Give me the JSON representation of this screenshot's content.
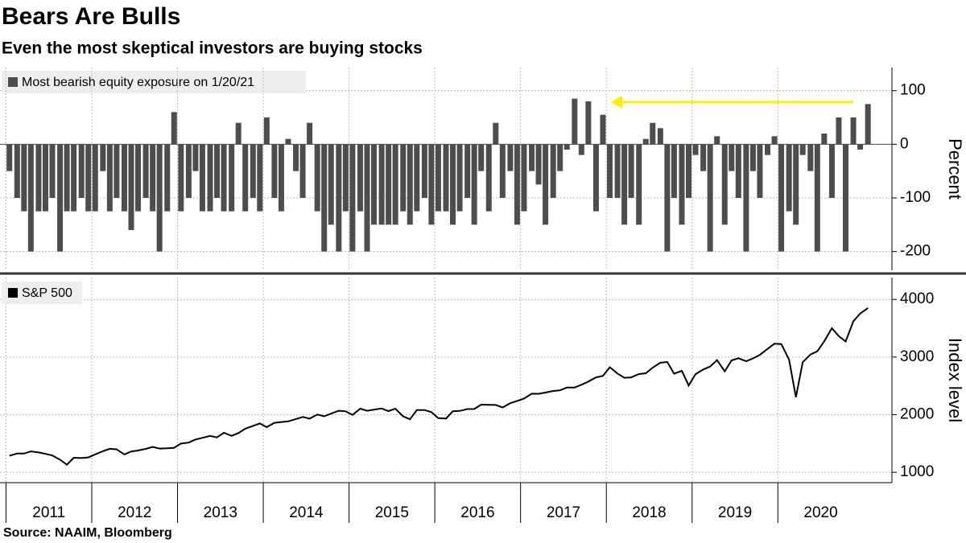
{
  "title": "Bears Are Bulls",
  "subtitle": "Even the most skeptical investors are buying stocks",
  "source": "Source: NAAIM, Bloomberg",
  "chart_data": [
    {
      "type": "bar",
      "ylabel": "Percent",
      "x": [
        2011.04,
        2011.13,
        2011.21,
        2011.29,
        2011.38,
        2011.46,
        2011.54,
        2011.63,
        2011.71,
        2011.79,
        2011.88,
        2011.96,
        2012.04,
        2012.13,
        2012.21,
        2012.29,
        2012.38,
        2012.46,
        2012.54,
        2012.63,
        2012.71,
        2012.79,
        2012.88,
        2012.96,
        2013.04,
        2013.13,
        2013.21,
        2013.29,
        2013.38,
        2013.46,
        2013.54,
        2013.63,
        2013.71,
        2013.79,
        2013.88,
        2013.96,
        2014.04,
        2014.13,
        2014.21,
        2014.29,
        2014.38,
        2014.46,
        2014.54,
        2014.63,
        2014.71,
        2014.79,
        2014.88,
        2014.96,
        2015.04,
        2015.13,
        2015.21,
        2015.29,
        2015.38,
        2015.46,
        2015.54,
        2015.63,
        2015.71,
        2015.79,
        2015.88,
        2015.96,
        2016.04,
        2016.13,
        2016.21,
        2016.29,
        2016.38,
        2016.46,
        2016.54,
        2016.63,
        2016.71,
        2016.79,
        2016.88,
        2016.96,
        2017.04,
        2017.13,
        2017.21,
        2017.29,
        2017.38,
        2017.46,
        2017.54,
        2017.63,
        2017.71,
        2017.79,
        2017.88,
        2017.96,
        2018.04,
        2018.13,
        2018.21,
        2018.29,
        2018.38,
        2018.46,
        2018.54,
        2018.63,
        2018.71,
        2018.79,
        2018.88,
        2018.96,
        2019.04,
        2019.13,
        2019.21,
        2019.29,
        2019.38,
        2019.46,
        2019.54,
        2019.63,
        2019.71,
        2019.79,
        2019.88,
        2019.96,
        2020.04,
        2020.13,
        2020.21,
        2020.29,
        2020.38,
        2020.46,
        2020.54,
        2020.63,
        2020.71,
        2020.79,
        2020.88,
        2020.96,
        2021.05
      ],
      "series": [
        {
          "name": "Most bearish equity exposure on 1/20/21",
          "color": "#4d4d4d",
          "values": [
            -50,
            -100,
            -125,
            -200,
            -125,
            -125,
            -100,
            -200,
            -125,
            -125,
            -100,
            -125,
            -125,
            -50,
            -125,
            -100,
            -125,
            -160,
            -125,
            -100,
            -125,
            -200,
            -125,
            60,
            -125,
            -100,
            -50,
            -125,
            -125,
            -100,
            -125,
            -125,
            40,
            -125,
            -100,
            -125,
            50,
            -100,
            -125,
            10,
            -50,
            -100,
            40,
            -125,
            -200,
            -150,
            -200,
            -125,
            -200,
            -125,
            -200,
            -150,
            -150,
            -150,
            -150,
            -125,
            -150,
            -125,
            -100,
            -150,
            -125,
            -125,
            -150,
            -125,
            -100,
            -150,
            -50,
            -125,
            40,
            -100,
            -50,
            -150,
            -125,
            -50,
            -75,
            -150,
            -100,
            -50,
            -10,
            85,
            -20,
            80,
            -125,
            55,
            -100,
            -100,
            -150,
            -100,
            -150,
            10,
            40,
            30,
            -200,
            -100,
            -150,
            -100,
            -20,
            -50,
            -200,
            15,
            -150,
            -50,
            -100,
            -200,
            -50,
            -100,
            -20,
            15,
            -200,
            -125,
            -150,
            -20,
            -50,
            -200,
            20,
            -100,
            50,
            -200,
            50,
            -10,
            75
          ]
        }
      ],
      "xlim": [
        2010.93,
        2021.33
      ],
      "ylim": [
        -235,
        143
      ],
      "yticks": [
        100,
        0,
        -100,
        -200
      ],
      "grid": true
    },
    {
      "type": "line",
      "ylabel": "Index level",
      "x": [
        2011.04,
        2011.13,
        2011.21,
        2011.29,
        2011.38,
        2011.46,
        2011.54,
        2011.63,
        2011.71,
        2011.79,
        2011.88,
        2011.96,
        2012.04,
        2012.13,
        2012.21,
        2012.29,
        2012.38,
        2012.46,
        2012.54,
        2012.63,
        2012.71,
        2012.79,
        2012.88,
        2012.96,
        2013.04,
        2013.13,
        2013.21,
        2013.29,
        2013.38,
        2013.46,
        2013.54,
        2013.63,
        2013.71,
        2013.79,
        2013.88,
        2013.96,
        2014.04,
        2014.13,
        2014.21,
        2014.29,
        2014.38,
        2014.46,
        2014.54,
        2014.63,
        2014.71,
        2014.79,
        2014.88,
        2014.96,
        2015.04,
        2015.13,
        2015.21,
        2015.29,
        2015.38,
        2015.46,
        2015.54,
        2015.63,
        2015.71,
        2015.79,
        2015.88,
        2015.96,
        2016.04,
        2016.13,
        2016.21,
        2016.29,
        2016.38,
        2016.46,
        2016.54,
        2016.63,
        2016.71,
        2016.79,
        2016.88,
        2016.96,
        2017.04,
        2017.13,
        2017.21,
        2017.29,
        2017.38,
        2017.46,
        2017.54,
        2017.63,
        2017.71,
        2017.79,
        2017.88,
        2017.96,
        2018.04,
        2018.13,
        2018.21,
        2018.29,
        2018.38,
        2018.46,
        2018.54,
        2018.63,
        2018.71,
        2018.79,
        2018.88,
        2018.96,
        2019.04,
        2019.13,
        2019.21,
        2019.29,
        2019.38,
        2019.46,
        2019.54,
        2019.63,
        2019.71,
        2019.79,
        2019.88,
        2019.96,
        2020.04,
        2020.13,
        2020.21,
        2020.29,
        2020.38,
        2020.46,
        2020.54,
        2020.63,
        2020.71,
        2020.79,
        2020.88,
        2020.96,
        2021.05
      ],
      "series": [
        {
          "name": "S&P 500",
          "color": "#000000",
          "values": [
            1286,
            1327,
            1325,
            1363,
            1345,
            1320,
            1292,
            1218,
            1131,
            1253,
            1247,
            1258,
            1312,
            1366,
            1408,
            1398,
            1310,
            1362,
            1379,
            1406,
            1441,
            1412,
            1416,
            1426,
            1498,
            1515,
            1569,
            1598,
            1631,
            1606,
            1686,
            1633,
            1682,
            1757,
            1806,
            1848,
            1783,
            1859,
            1872,
            1884,
            1924,
            1960,
            1931,
            2003,
            1972,
            2018,
            2068,
            2059,
            1995,
            2105,
            2068,
            2086,
            2107,
            2063,
            2104,
            1972,
            1920,
            2079,
            2080,
            2044,
            1940,
            1932,
            2060,
            2065,
            2097,
            2099,
            2174,
            2171,
            2168,
            2126,
            2199,
            2239,
            2279,
            2364,
            2363,
            2384,
            2412,
            2423,
            2470,
            2472,
            2519,
            2575,
            2648,
            2674,
            2824,
            2714,
            2641,
            2648,
            2705,
            2718,
            2816,
            2902,
            2914,
            2711,
            2760,
            2507,
            2704,
            2784,
            2834,
            2946,
            2752,
            2942,
            2980,
            2926,
            2977,
            3038,
            3141,
            3231,
            3226,
            2954,
            2304,
            2912,
            3044,
            3100,
            3271,
            3500,
            3363,
            3270,
            3622,
            3756,
            3851
          ]
        }
      ],
      "xlim": [
        2010.93,
        2021.33
      ],
      "ylim": [
        820,
        4380
      ],
      "yticks": [
        1000,
        2000,
        3000,
        4000
      ],
      "xticks": [
        2011,
        2012,
        2013,
        2014,
        2015,
        2016,
        2017,
        2018,
        2019,
        2020
      ],
      "grid": true
    }
  ]
}
